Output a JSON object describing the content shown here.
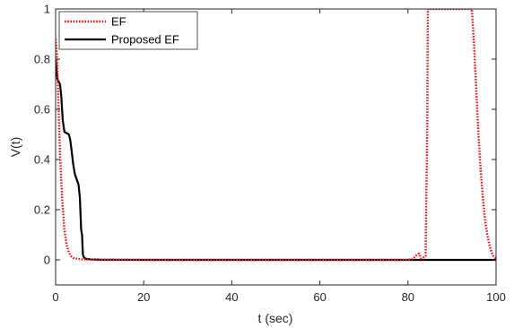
{
  "chart_data": {
    "type": "line",
    "title": "",
    "xlabel": "t (sec)",
    "ylabel": "V(t)",
    "xlim": [
      0,
      100
    ],
    "ylim": [
      -0.1,
      1
    ],
    "xticks": [
      0,
      20,
      40,
      60,
      80,
      100
    ],
    "yticks": [
      0,
      0.2,
      0.4,
      0.6,
      0.8,
      1
    ],
    "grid": false,
    "legend_position": "top-left",
    "series": [
      {
        "name": "EF",
        "color": "#e8161c",
        "style": "dotted",
        "x": [
          0,
          0.3,
          0.6,
          1,
          1.5,
          2,
          2.5,
          3,
          3.5,
          4,
          5,
          6,
          8,
          10,
          20,
          40,
          60,
          80,
          81,
          82,
          82.5,
          83,
          83.5,
          84,
          84.2,
          84.4,
          84.5,
          84.7,
          85,
          86,
          90,
          94.5,
          95,
          95.5,
          96,
          96.5,
          97,
          97.5,
          98,
          98.5,
          99,
          99.5,
          100
        ],
        "y": [
          0.88,
          0.82,
          0.65,
          0.42,
          0.24,
          0.12,
          0.06,
          0.03,
          0.015,
          0.008,
          0.004,
          0.002,
          0.001,
          0,
          0,
          0,
          0,
          0,
          0.003,
          0.02,
          0.025,
          0.005,
          0.01,
          0.015,
          0.3,
          0.55,
          1.0,
          1.0,
          1.0,
          1.0,
          1.0,
          1.0,
          0.86,
          0.68,
          0.5,
          0.36,
          0.25,
          0.16,
          0.1,
          0.06,
          0.03,
          0.012,
          0.005
        ]
      },
      {
        "name": "Proposed EF",
        "color": "#000000",
        "style": "solid",
        "x": [
          0,
          0.2,
          0.4,
          0.7,
          1,
          1.3,
          1.6,
          2,
          2.5,
          3,
          3.3,
          3.6,
          4,
          4.4,
          4.8,
          5.2,
          5.5,
          5.8,
          6,
          6.2,
          6.5,
          7,
          8,
          10,
          20,
          40,
          60,
          80,
          100
        ],
        "y": [
          0.8,
          0.76,
          0.72,
          0.71,
          0.7,
          0.65,
          0.56,
          0.51,
          0.505,
          0.5,
          0.48,
          0.44,
          0.38,
          0.34,
          0.32,
          0.3,
          0.25,
          0.12,
          0.1,
          0.02,
          0.008,
          0.004,
          0.002,
          0.001,
          0,
          0,
          0,
          0,
          0
        ]
      }
    ]
  }
}
